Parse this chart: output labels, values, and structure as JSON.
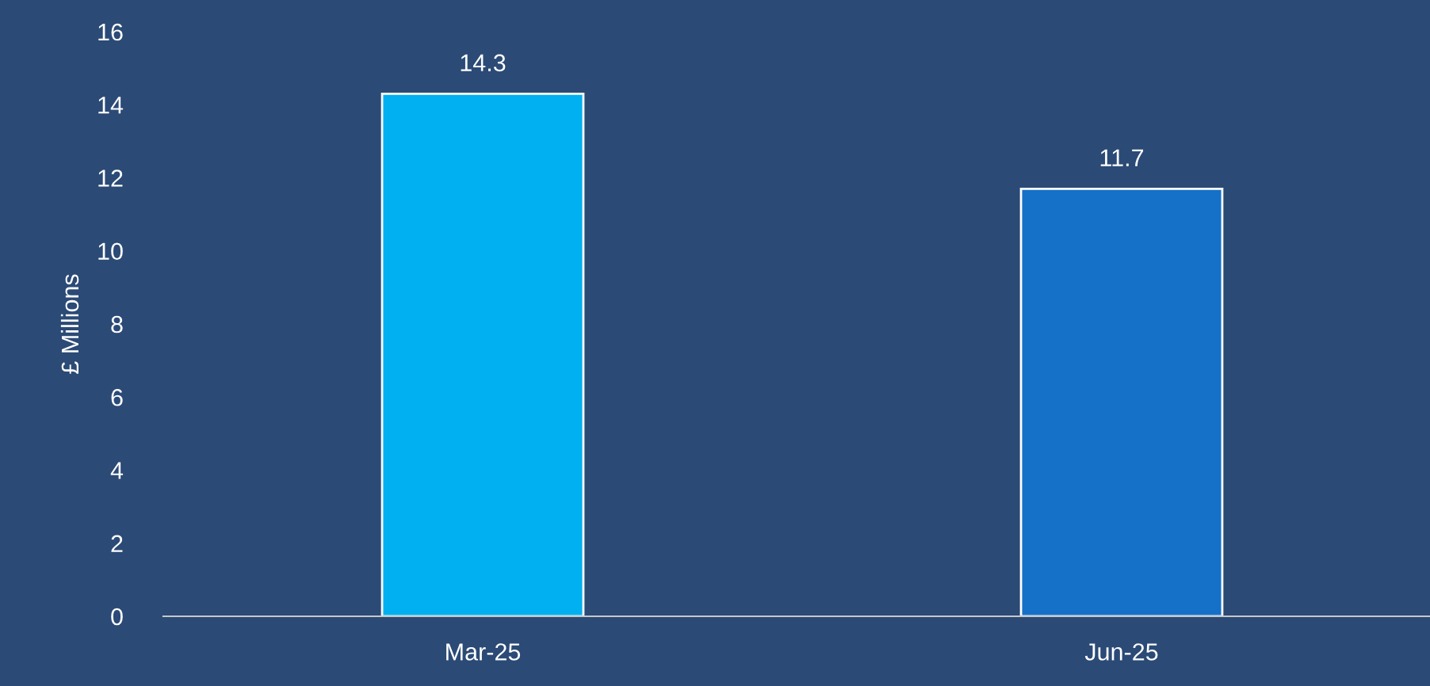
{
  "chart_data": {
    "type": "bar",
    "ylabel": "£ Millions",
    "categories": [
      "Mar-25",
      "Jun-25"
    ],
    "values": [
      14.3,
      11.7
    ],
    "colors": [
      "#00b0f0",
      "#1570c8"
    ],
    "ylim": [
      0,
      16
    ],
    "yticks": [
      0,
      2,
      4,
      6,
      8,
      10,
      12,
      14,
      16
    ],
    "data_labels": true,
    "grid": false,
    "legend": false
  }
}
